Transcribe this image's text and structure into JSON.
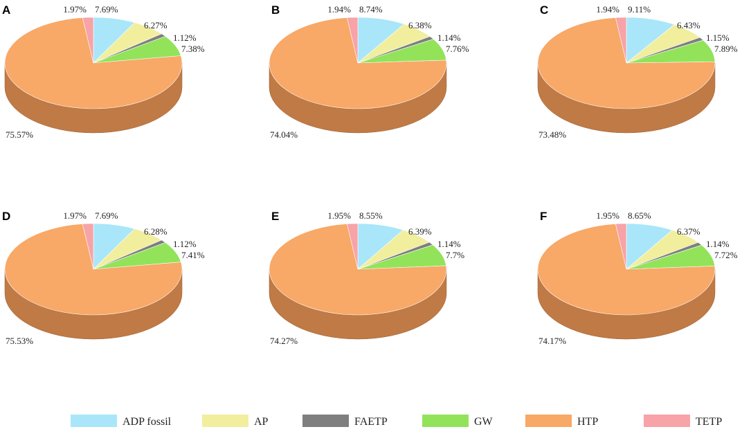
{
  "colors": {
    "ADP fossil": "#a9e6f9",
    "AP": "#f1ee9e",
    "FAETP": "#7f7f7f",
    "GW": "#92e35a",
    "HTP": "#f8a867",
    "TETP": "#f7a3a8",
    "HTP_side": "#c07a45"
  },
  "legend": {
    "items": [
      "ADP fossil",
      "AP",
      "FAETP",
      "GW",
      "HTP",
      "TETP"
    ]
  },
  "chart_data": [
    {
      "type": "pie",
      "panel": "A",
      "categories": [
        "ADP fossil",
        "AP",
        "FAETP",
        "GW",
        "HTP",
        "TETP"
      ],
      "values": [
        7.69,
        6.27,
        1.12,
        7.38,
        75.57,
        1.97
      ],
      "labels": [
        "7.69%",
        "6.27%",
        "1.12%",
        "7.38%",
        "75.57%",
        "1.97%"
      ]
    },
    {
      "type": "pie",
      "panel": "B",
      "categories": [
        "ADP fossil",
        "AP",
        "FAETP",
        "GW",
        "HTP",
        "TETP"
      ],
      "values": [
        8.74,
        6.38,
        1.14,
        7.76,
        74.04,
        1.94
      ],
      "labels": [
        "8.74%",
        "6.38%",
        "1.14%",
        "7.76%",
        "74.04%",
        "1.94%"
      ]
    },
    {
      "type": "pie",
      "panel": "C",
      "categories": [
        "ADP fossil",
        "AP",
        "FAETP",
        "GW",
        "HTP",
        "TETP"
      ],
      "values": [
        9.11,
        6.43,
        1.15,
        7.89,
        73.48,
        1.94
      ],
      "labels": [
        "9.11%",
        "6.43%",
        "1.15%",
        "7.89%",
        "73.48%",
        "1.94%"
      ]
    },
    {
      "type": "pie",
      "panel": "D",
      "categories": [
        "ADP fossil",
        "AP",
        "FAETP",
        "GW",
        "HTP",
        "TETP"
      ],
      "values": [
        7.69,
        6.28,
        1.12,
        7.41,
        75.53,
        1.97
      ],
      "labels": [
        "7.69%",
        "6.28%",
        "1.12%",
        "7.41%",
        "75.53%",
        "1.97%"
      ]
    },
    {
      "type": "pie",
      "panel": "E",
      "categories": [
        "ADP fossil",
        "AP",
        "FAETP",
        "GW",
        "HTP",
        "TETP"
      ],
      "values": [
        8.55,
        6.39,
        1.14,
        7.7,
        74.27,
        1.95
      ],
      "labels": [
        "8.55%",
        "6.39%",
        "1.14%",
        "7.7%",
        "74.27%",
        "1.95%"
      ]
    },
    {
      "type": "pie",
      "panel": "F",
      "categories": [
        "ADP fossil",
        "AP",
        "FAETP",
        "GW",
        "HTP",
        "TETP"
      ],
      "values": [
        8.65,
        6.37,
        1.14,
        7.72,
        74.17,
        1.95
      ],
      "labels": [
        "8.65%",
        "6.37%",
        "1.14%",
        "7.72%",
        "74.17%",
        "1.95%"
      ]
    }
  ]
}
